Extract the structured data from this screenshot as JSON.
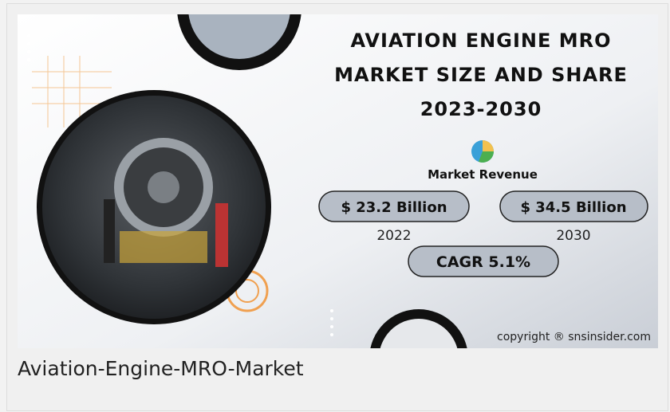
{
  "banner": {
    "title_lines": [
      "AVIATION ENGINE MRO",
      "MARKET SIZE AND SHARE",
      "2023-2030"
    ],
    "subtitle": "Market Revenue",
    "stats": [
      {
        "value": "$ 23.2 Billion",
        "year": "2022"
      },
      {
        "value": "$ 34.5 Billion",
        "year": "2030"
      }
    ],
    "cagr": "CAGR 5.1%",
    "copyright": "copyright ® snsinsider.com"
  },
  "caption": "Aviation-Engine-MRO-Market"
}
